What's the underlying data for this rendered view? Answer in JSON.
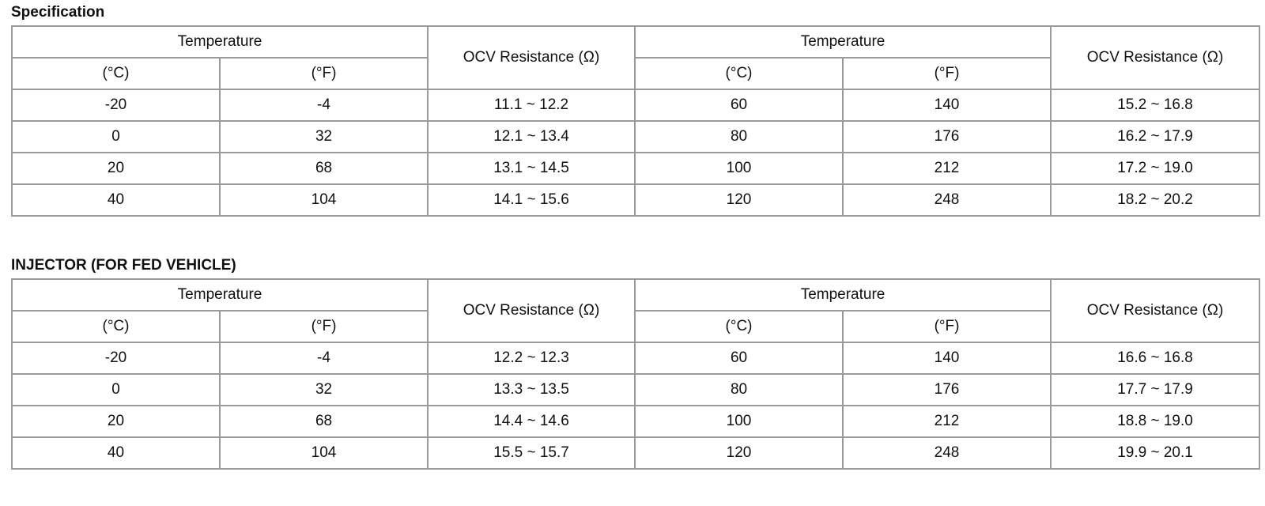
{
  "sections": [
    {
      "title": "Specification",
      "table": {
        "header": {
          "top": [
            "Temperature",
            "OCV Resistance (Ω)",
            "Temperature",
            "OCV Resistance (Ω)"
          ],
          "sub": [
            "(°C)",
            "(°F)",
            "(°C)",
            "(°F)"
          ]
        },
        "rows": [
          [
            "-20",
            "-4",
            "11.1 ~ 12.2",
            "60",
            "140",
            "15.2 ~ 16.8"
          ],
          [
            "0",
            "32",
            "12.1 ~ 13.4",
            "80",
            "176",
            "16.2 ~ 17.9"
          ],
          [
            "20",
            "68",
            "13.1 ~ 14.5",
            "100",
            "212",
            "17.2 ~ 19.0"
          ],
          [
            "40",
            "104",
            "14.1 ~ 15.6",
            "120",
            "248",
            "18.2 ~ 20.2"
          ]
        ]
      }
    },
    {
      "title": "INJECTOR (FOR FED VEHICLE)",
      "table": {
        "header": {
          "top": [
            "Temperature",
            "OCV Resistance (Ω)",
            "Temperature",
            "OCV Resistance (Ω)"
          ],
          "sub": [
            "(°C)",
            "(°F)",
            "(°C)",
            "(°F)"
          ]
        },
        "rows": [
          [
            "-20",
            "-4",
            "12.2 ~ 12.3",
            "60",
            "140",
            "16.6 ~ 16.8"
          ],
          [
            "0",
            "32",
            "13.3 ~ 13.5",
            "80",
            "176",
            "17.7 ~ 17.9"
          ],
          [
            "20",
            "68",
            "14.4 ~ 14.6",
            "100",
            "212",
            "18.8 ~ 19.0"
          ],
          [
            "40",
            "104",
            "15.5 ~ 15.7",
            "120",
            "248",
            "19.9 ~ 20.1"
          ]
        ]
      }
    }
  ]
}
